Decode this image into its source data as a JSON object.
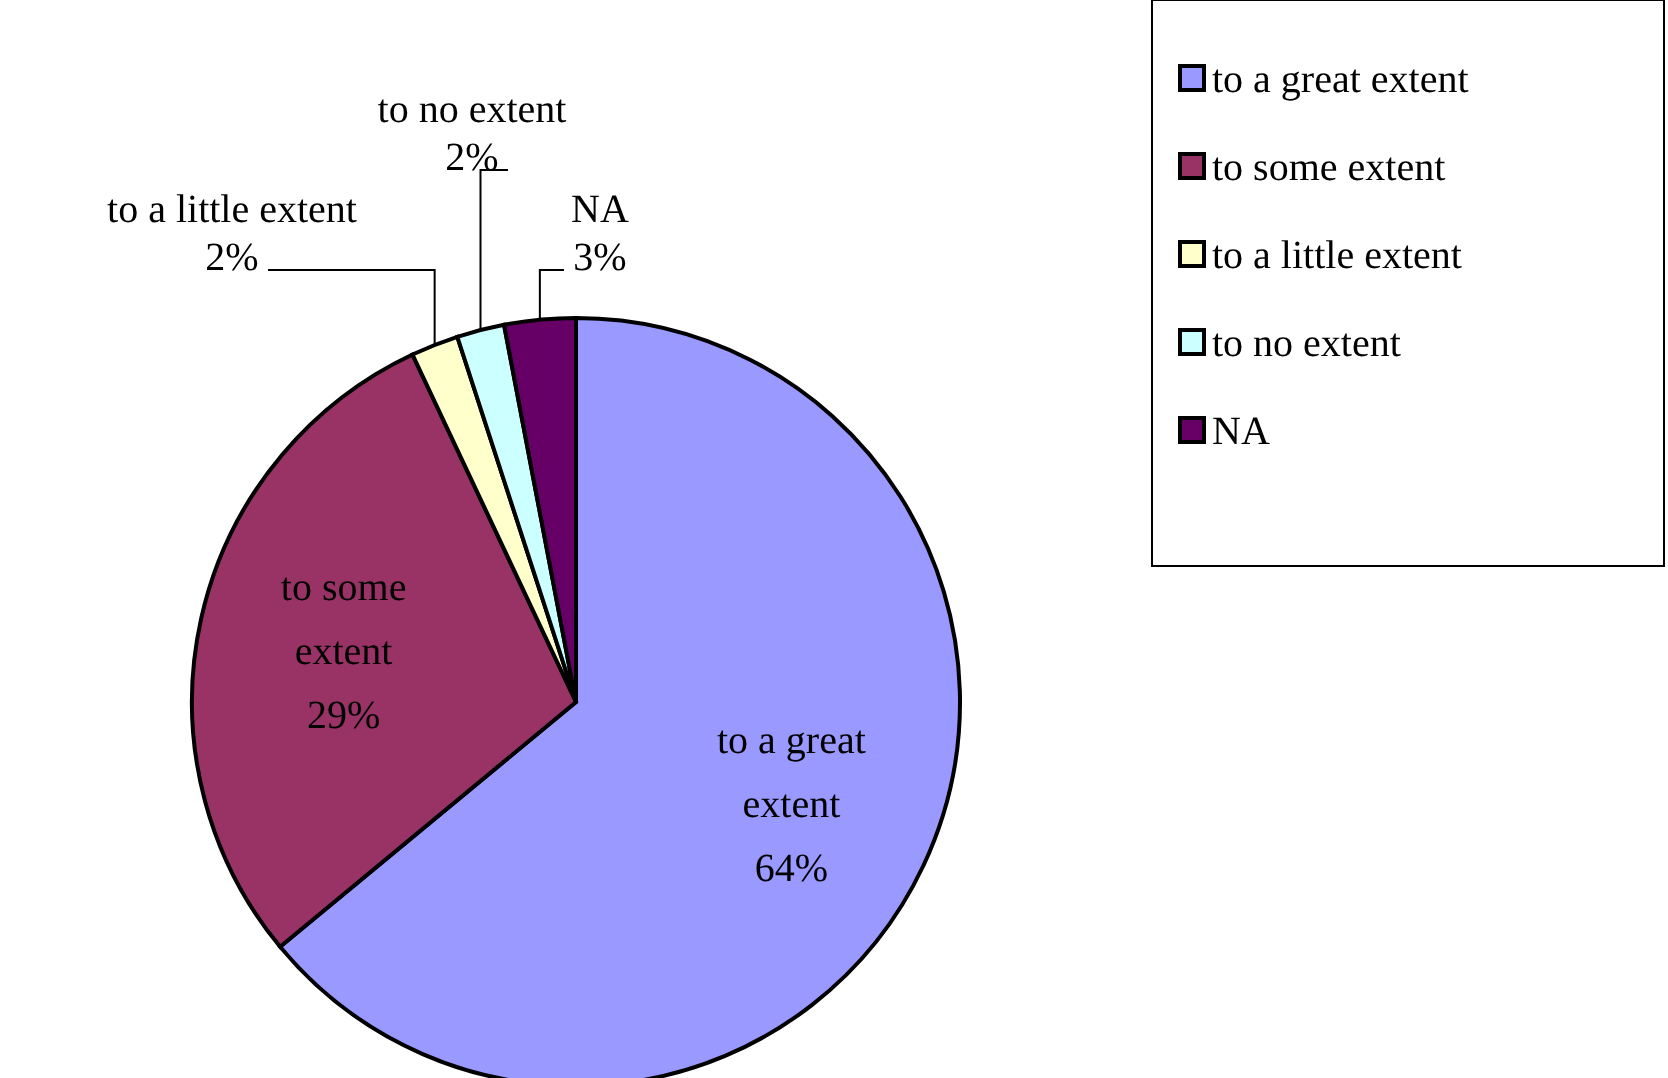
{
  "chart_data": {
    "type": "pie",
    "categories": [
      "to a great extent",
      "to some extent",
      "to a little extent",
      "to no extent",
      "NA"
    ],
    "values": [
      64,
      29,
      2,
      2,
      3
    ],
    "colors": [
      "#9999ff",
      "#993366",
      "#ffffcc",
      "#ccffff",
      "#660066"
    ],
    "value_labels": [
      "64%",
      "29%",
      "2%",
      "2%",
      "3%"
    ],
    "legend": "top right"
  }
}
